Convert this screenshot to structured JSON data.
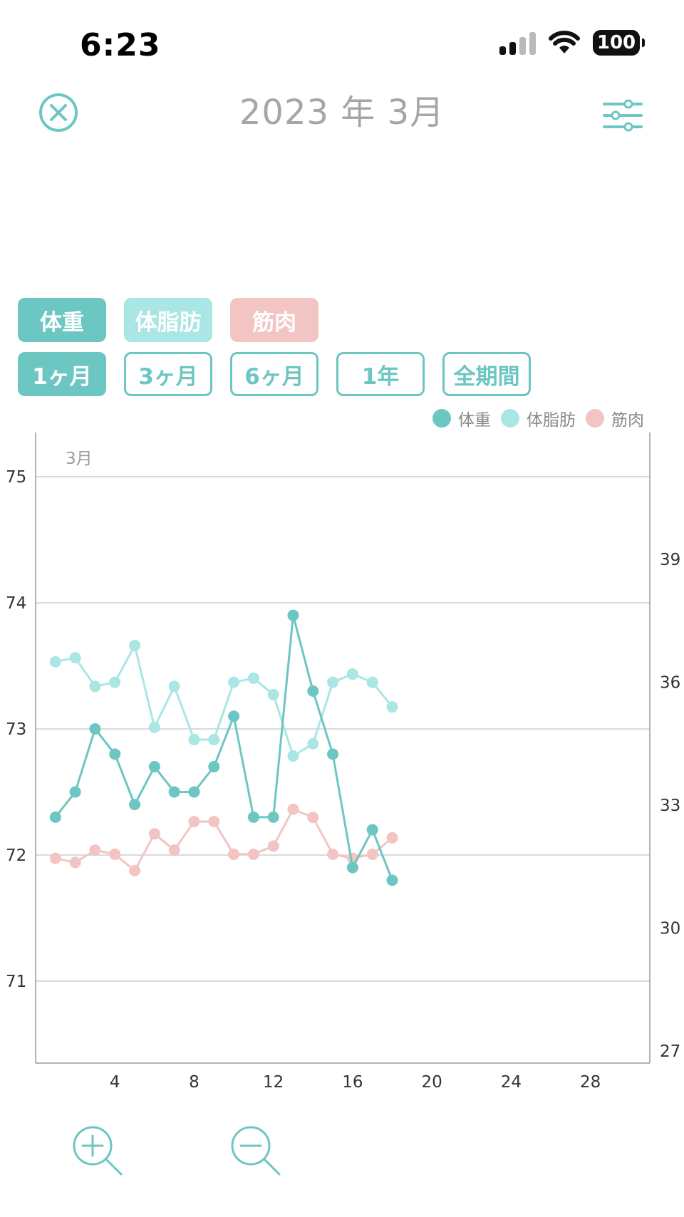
{
  "status_bar": {
    "time": "6:23",
    "battery": "100",
    "signal_bars": 2,
    "icons": [
      "signal-icon",
      "wifi-icon",
      "battery-icon"
    ]
  },
  "header": {
    "title": "2023 年 3月",
    "close_icon": "close-circle-icon",
    "filter_icon": "sliders-icon"
  },
  "metric_buttons": [
    {
      "label": "体重",
      "color": "#6cc6c2"
    },
    {
      "label": "体脂肪",
      "color": "#a9e6e4"
    },
    {
      "label": "筋肉",
      "color": "#f3c4c4"
    }
  ],
  "period_buttons": [
    {
      "label": "1ヶ月",
      "active": true
    },
    {
      "label": "3ヶ月",
      "active": false
    },
    {
      "label": "6ヶ月",
      "active": false
    },
    {
      "label": "1年",
      "active": false
    },
    {
      "label": "全期間",
      "active": false
    }
  ],
  "zoom": {
    "zoom_in_icon": "zoom-in-icon",
    "zoom_out_icon": "zoom-out-icon"
  },
  "chart_data": {
    "type": "line",
    "month_label": "3月",
    "legend": [
      "体重",
      "体脂肪",
      "筋肉"
    ],
    "legend_placement": "top-right",
    "grid": true,
    "x": [
      1,
      2,
      3,
      4,
      5,
      6,
      7,
      8,
      9,
      10,
      11,
      12,
      13,
      14,
      15,
      16,
      17,
      18
    ],
    "xlim": [
      0,
      31
    ],
    "xticks": [
      4,
      8,
      12,
      16,
      20,
      24,
      28
    ],
    "ylim_left": [
      70.35,
      75.35
    ],
    "yticks_left": [
      71,
      72,
      73,
      74,
      75
    ],
    "ylim_right": [
      26.7,
      42.1
    ],
    "yticks_right": [
      27,
      30,
      33,
      36,
      39
    ],
    "series": [
      {
        "name": "体重",
        "axis": "left",
        "color": "#6cc6c2",
        "values": [
          72.3,
          72.5,
          73.0,
          72.8,
          72.4,
          72.7,
          72.5,
          72.5,
          72.7,
          73.1,
          72.3,
          72.3,
          73.9,
          73.3,
          72.8,
          71.9,
          72.2,
          71.8
        ]
      },
      {
        "name": "体脂肪",
        "axis": "right",
        "color": "#a9e6e4",
        "values": [
          36.5,
          36.6,
          35.9,
          36.0,
          36.9,
          34.9,
          35.9,
          34.6,
          34.6,
          36.0,
          36.1,
          35.7,
          34.2,
          34.5,
          36.0,
          36.2,
          36.0,
          35.4
        ]
      },
      {
        "name": "筋肉",
        "axis": "right",
        "color": "#f3c4c4",
        "values": [
          31.7,
          31.6,
          31.9,
          31.8,
          31.4,
          32.3,
          31.9,
          32.6,
          32.6,
          31.8,
          31.8,
          32.0,
          32.9,
          32.7,
          31.8,
          31.7,
          31.8,
          32.2
        ]
      }
    ]
  }
}
